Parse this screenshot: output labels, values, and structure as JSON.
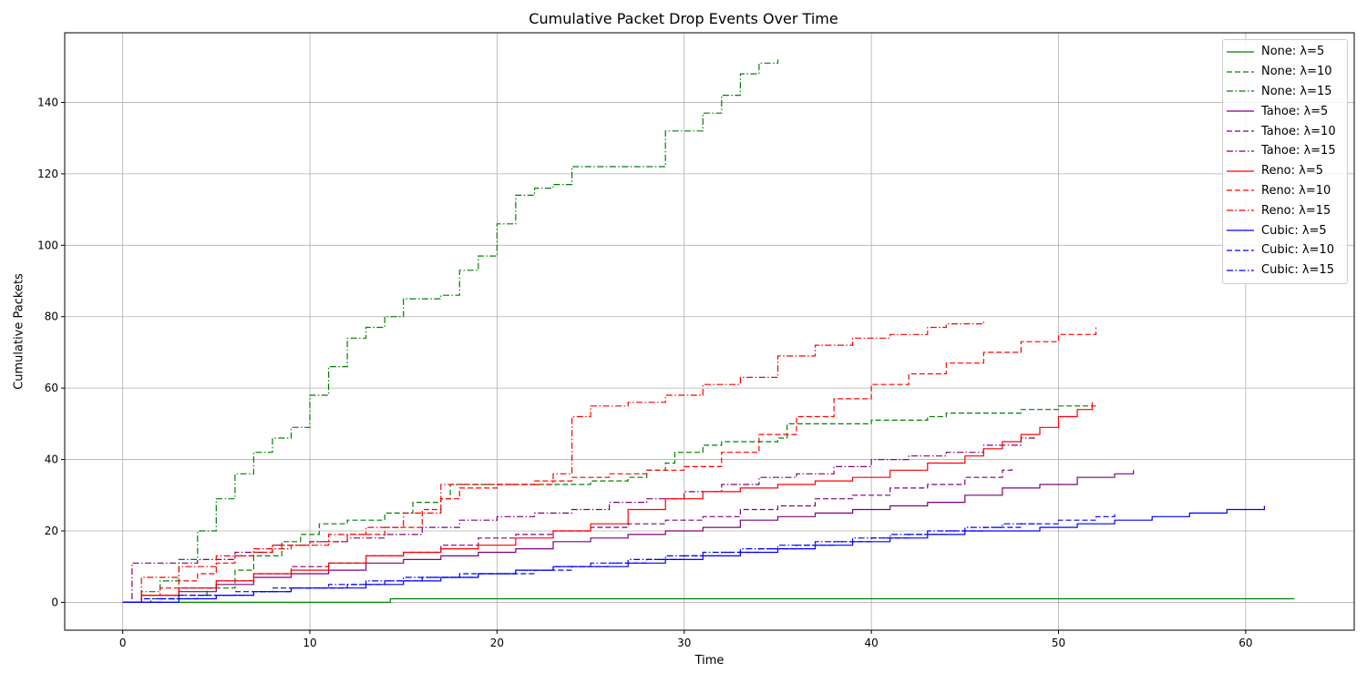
{
  "chart_data": {
    "type": "line",
    "title": "Cumulative Packet Drop Events Over Time",
    "xlabel": "Time",
    "ylabel": "Cumulative Packets",
    "xlim": [
      -3.1,
      65.8
    ],
    "ylim": [
      -7.8,
      159.5
    ],
    "xticks": [
      0,
      10,
      20,
      30,
      40,
      50,
      60
    ],
    "yticks": [
      0,
      20,
      40,
      60,
      80,
      100,
      120,
      140
    ],
    "grid": true,
    "legend_position": "top-right",
    "colors": {
      "None": "#008000",
      "Tahoe": "#800080",
      "Reno": "#ff0000",
      "Cubic": "#0000ff"
    },
    "series": [
      {
        "name": "None: λ=5",
        "protocol": "None",
        "style": "solid",
        "x": [
          0,
          14.3,
          62.6
        ],
        "y": [
          0,
          1,
          1
        ]
      },
      {
        "name": "None: λ=10",
        "protocol": "None",
        "style": "dashed",
        "x": [
          0,
          1.5,
          3,
          4.5,
          6,
          7,
          8.5,
          9.5,
          10.5,
          12,
          14,
          15.5,
          17,
          17.5,
          20,
          22,
          25,
          27,
          28,
          29,
          29.5,
          31,
          32,
          35,
          35.5,
          40,
          43,
          44,
          48,
          50,
          52
        ],
        "y": [
          0,
          1,
          2,
          4,
          9,
          13,
          17,
          19,
          22,
          23,
          25,
          28,
          29,
          33,
          33,
          33,
          34,
          35,
          37,
          39,
          42,
          44,
          45,
          46,
          50,
          51,
          52,
          53,
          54,
          55,
          55
        ]
      },
      {
        "name": "None: λ=15",
        "protocol": "None",
        "style": "dashdot",
        "x": [
          0,
          1,
          2,
          3,
          4,
          5,
          6,
          7,
          8,
          9,
          10,
          11,
          12,
          13,
          14,
          15,
          17,
          18,
          19,
          20,
          21,
          22,
          23,
          24,
          26,
          28,
          29,
          30,
          31,
          32,
          33,
          34,
          35
        ],
        "y": [
          0,
          3,
          6,
          12,
          20,
          29,
          36,
          42,
          46,
          49,
          58,
          66,
          74,
          77,
          80,
          85,
          86,
          93,
          97,
          106,
          114,
          116,
          117,
          122,
          122,
          122,
          132,
          132,
          137,
          142,
          148,
          151,
          152
        ]
      },
      {
        "name": "Tahoe: λ=5",
        "protocol": "Tahoe",
        "style": "solid",
        "x": [
          0,
          1,
          3,
          5,
          7,
          9,
          11,
          13,
          15,
          17,
          19,
          21,
          23,
          25,
          27,
          29,
          31,
          33,
          35,
          37,
          39,
          41,
          43,
          45,
          47,
          49,
          51,
          53,
          54
        ],
        "y": [
          0,
          2,
          3,
          5,
          7,
          8,
          9,
          11,
          12,
          13,
          14,
          15,
          17,
          18,
          19,
          20,
          21,
          23,
          24,
          25,
          26,
          27,
          28,
          30,
          32,
          33,
          35,
          36,
          37
        ]
      },
      {
        "name": "Tahoe: λ=10",
        "protocol": "Tahoe",
        "style": "dashed",
        "x": [
          0,
          1,
          3,
          5,
          7,
          9,
          11,
          13,
          15,
          17,
          19,
          21,
          23,
          25,
          27,
          29,
          31,
          33,
          35,
          37,
          39,
          41,
          43,
          45,
          47,
          47.5
        ],
        "y": [
          0,
          2,
          4,
          6,
          8,
          10,
          11,
          13,
          14,
          16,
          18,
          19,
          20,
          21,
          22,
          23,
          24,
          26,
          27,
          29,
          30,
          32,
          33,
          35,
          37,
          38
        ]
      },
      {
        "name": "Tahoe: λ=15",
        "protocol": "Tahoe",
        "style": "dashdot",
        "x": [
          0,
          0.5,
          2,
          4,
          6,
          8,
          10,
          12,
          14,
          16,
          18,
          20,
          22,
          24,
          26,
          28,
          30,
          32,
          34,
          36,
          38,
          40,
          42,
          44,
          46,
          48,
          48.7
        ],
        "y": [
          0,
          11,
          11,
          12,
          14,
          16,
          17,
          18,
          19,
          21,
          23,
          24,
          25,
          26,
          28,
          29,
          31,
          33,
          35,
          36,
          38,
          40,
          41,
          42,
          44,
          46,
          47
        ]
      },
      {
        "name": "Reno: λ=5",
        "protocol": "Reno",
        "style": "solid",
        "x": [
          0,
          1,
          3,
          5,
          7,
          9,
          11,
          13,
          15,
          17,
          19,
          21,
          23,
          25,
          27,
          29,
          31,
          33,
          35,
          37,
          39,
          41,
          43,
          45,
          46,
          47,
          48,
          49,
          50,
          51,
          51.8
        ],
        "y": [
          0,
          2,
          4,
          6,
          8,
          9,
          11,
          13,
          14,
          15,
          16,
          18,
          20,
          22,
          26,
          29,
          31,
          32,
          33,
          34,
          35,
          37,
          39,
          41,
          43,
          45,
          47,
          49,
          52,
          54,
          56
        ]
      },
      {
        "name": "Reno: λ=10",
        "protocol": "Reno",
        "style": "dashed",
        "x": [
          0,
          1,
          2,
          3,
          4,
          5,
          6,
          7,
          8,
          10,
          12,
          14,
          16,
          17,
          18,
          20,
          22,
          24,
          26,
          28,
          30,
          32,
          34,
          36,
          38,
          40,
          42,
          44,
          46,
          48,
          50,
          52
        ],
        "y": [
          0,
          2,
          4,
          6,
          8,
          11,
          13,
          14,
          16,
          17,
          19,
          21,
          26,
          29,
          32,
          33,
          34,
          35,
          36,
          37,
          38,
          42,
          47,
          52,
          57,
          61,
          64,
          67,
          70,
          73,
          75,
          77
        ]
      },
      {
        "name": "Reno: λ=15",
        "protocol": "Reno",
        "style": "dashdot",
        "x": [
          0,
          1,
          3,
          5,
          7,
          9,
          11,
          13,
          15,
          17,
          19,
          21,
          23,
          24,
          25,
          27,
          29,
          31,
          33,
          35,
          37,
          39,
          41,
          43,
          44,
          45,
          46
        ],
        "y": [
          0,
          7,
          10,
          13,
          15,
          16,
          19,
          21,
          25,
          33,
          33,
          33,
          36,
          52,
          55,
          56,
          58,
          61,
          63,
          69,
          72,
          74,
          75,
          77,
          78,
          78,
          79
        ]
      },
      {
        "name": "Cubic: λ=5",
        "protocol": "Cubic",
        "style": "solid",
        "x": [
          0,
          3,
          5,
          7,
          9,
          11,
          13,
          15,
          17,
          19,
          21,
          23,
          25,
          27,
          29,
          31,
          33,
          35,
          37,
          39,
          41,
          43,
          45,
          47,
          49,
          51,
          53,
          55,
          57,
          59,
          61
        ],
        "y": [
          0,
          1,
          2,
          3,
          4,
          4,
          5,
          6,
          7,
          8,
          9,
          10,
          10,
          11,
          12,
          13,
          14,
          15,
          16,
          17,
          18,
          19,
          20,
          20,
          21,
          22,
          23,
          24,
          25,
          26,
          27
        ]
      },
      {
        "name": "Cubic: λ=10",
        "protocol": "Cubic",
        "style": "dashed",
        "x": [
          0,
          2,
          4,
          6,
          8,
          10,
          12,
          14,
          16,
          18,
          20,
          22,
          24,
          26,
          28,
          30,
          32,
          34,
          36,
          38,
          40,
          42,
          44,
          46,
          48,
          50,
          52,
          53
        ],
        "y": [
          0,
          1,
          2,
          3,
          4,
          4,
          5,
          6,
          7,
          8,
          8,
          9,
          10,
          11,
          12,
          13,
          14,
          15,
          16,
          17,
          18,
          19,
          20,
          21,
          22,
          23,
          24,
          25
        ]
      },
      {
        "name": "Cubic: λ=15",
        "protocol": "Cubic",
        "style": "dashdot",
        "x": [
          0,
          1,
          3,
          5,
          7,
          9,
          11,
          13,
          15,
          17,
          19,
          21,
          23,
          25,
          27,
          29,
          31,
          33,
          35,
          37,
          39,
          41,
          43,
          45,
          47,
          49
        ],
        "y": [
          0,
          1,
          2,
          2,
          3,
          4,
          5,
          6,
          7,
          7,
          8,
          9,
          10,
          11,
          12,
          13,
          14,
          15,
          16,
          17,
          18,
          19,
          20,
          21,
          22,
          22
        ]
      }
    ]
  }
}
